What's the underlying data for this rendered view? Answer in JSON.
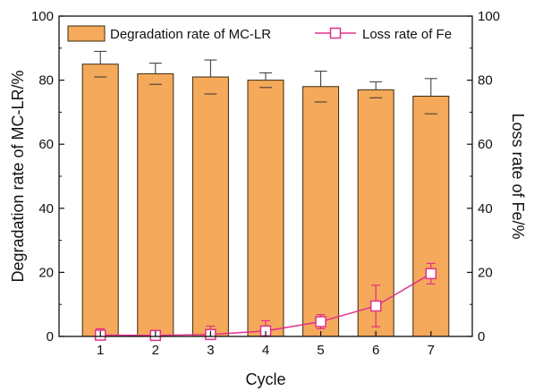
{
  "chart_data": {
    "type": "bar",
    "categories": [
      "1",
      "2",
      "3",
      "4",
      "5",
      "6",
      "7"
    ],
    "xlabel": "Cycle",
    "ylabel": "Degradation rate of MC-LR/%",
    "y2label": "Loss rate of Fe/%",
    "ylim": [
      0,
      100
    ],
    "y2lim": [
      0,
      100
    ],
    "yticks": [
      "0",
      "20",
      "40",
      "60",
      "80",
      "100"
    ],
    "y2ticks": [
      "0",
      "20",
      "40",
      "60",
      "80",
      "100"
    ],
    "grid": false,
    "legend_position": "top",
    "series": [
      {
        "name": "Degradation rate of MC-LR",
        "type": "bar",
        "axis": "left",
        "values": [
          85,
          82,
          81,
          80,
          78,
          77,
          75
        ],
        "error": [
          4,
          3.3,
          5.3,
          2.3,
          4.8,
          2.5,
          5.5
        ],
        "color": "#F5A95A",
        "edge_color": "#3a2a10"
      },
      {
        "name": "Loss rate of Fe",
        "type": "line",
        "axis": "right",
        "marker": "hollow-square",
        "values": [
          0.4,
          0.3,
          0.6,
          1.7,
          4.6,
          9.5,
          19.6
        ],
        "error": [
          2,
          1.3,
          2.6,
          3.2,
          2.2,
          6.5,
          3.2
        ],
        "color": "#E0318A"
      }
    ]
  }
}
